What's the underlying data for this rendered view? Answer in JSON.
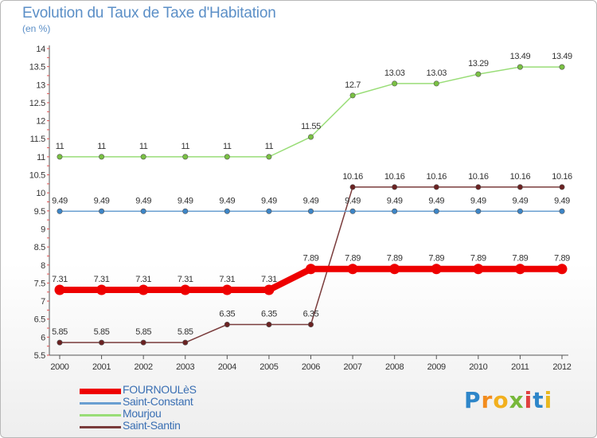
{
  "title": "Evolution du Taux de Taxe d'Habitation",
  "subtitle": "(en %)",
  "colors": {
    "title": "#5b8fc7",
    "FOURNOULèS": "#ee0000",
    "Saint-Constant": "#6a9fd1",
    "Mourjou": "#99dd77",
    "Saint-Santin": "#7a3c3c"
  },
  "legend": [
    {
      "name": "FOURNOULèS",
      "color": "#ee0000"
    },
    {
      "name": "Saint-Constant",
      "color": "#6a9fd1"
    },
    {
      "name": "Mourjou",
      "color": "#99dd77"
    },
    {
      "name": "Saint-Santin",
      "color": "#7a3c3c"
    }
  ],
  "logo": [
    "P",
    "r",
    "o",
    "x",
    "i",
    "t",
    "i"
  ],
  "chart_data": {
    "type": "line",
    "title": "Evolution du Taux de Taxe d'Habitation",
    "ylabel": "(en %)",
    "xlabel": "",
    "x": [
      "2000",
      "2001",
      "2002",
      "2003",
      "2004",
      "2005",
      "2006",
      "2007",
      "2008",
      "2009",
      "2010",
      "2011",
      "2012"
    ],
    "ylim": [
      5.5,
      14
    ],
    "yticks": [
      "5.5",
      "6",
      "6.5",
      "7",
      "7.5",
      "8",
      "8.5",
      "9",
      "9.5",
      "10",
      "10.5",
      "11",
      "11.5",
      "12",
      "12.5",
      "13",
      "13.5",
      "14"
    ],
    "grid": false,
    "legend_position": "bottom-left",
    "series": [
      {
        "name": "Mourjou",
        "color": "#99dd77",
        "marker": "#7ac143",
        "values": [
          11,
          11,
          11,
          11,
          11,
          11,
          11.55,
          12.7,
          13.03,
          13.03,
          13.29,
          13.49,
          13.49
        ],
        "labels": [
          "11",
          "11",
          "11",
          "11",
          "11",
          "11",
          "11.55",
          "12.7",
          "13.03",
          "13.03",
          "13.29",
          "13.49",
          "13.49"
        ]
      },
      {
        "name": "Saint-Santin",
        "color": "#7a3c3c",
        "marker": "#6b2222",
        "values": [
          5.85,
          5.85,
          5.85,
          5.85,
          6.35,
          6.35,
          6.35,
          10.16,
          10.16,
          10.16,
          10.16,
          10.16,
          10.16
        ],
        "labels": [
          "5.85",
          "5.85",
          "5.85",
          "5.85",
          "6.35",
          "6.35",
          "6.35",
          "10.16",
          "10.16",
          "10.16",
          "10.16",
          "10.16",
          "10.16"
        ]
      },
      {
        "name": "Saint-Constant",
        "color": "#6a9fd1",
        "marker": "#3d85c6",
        "values": [
          9.49,
          9.49,
          9.49,
          9.49,
          9.49,
          9.49,
          9.49,
          9.49,
          9.49,
          9.49,
          9.49,
          9.49,
          9.49
        ],
        "labels": [
          "9.49",
          "9.49",
          "9.49",
          "9.49",
          "9.49",
          "9.49",
          "9.49",
          "9.49",
          "9.49",
          "9.49",
          "9.49",
          "9.49",
          "9.49"
        ]
      },
      {
        "name": "FOURNOULèS",
        "color": "#ee0000",
        "marker": "#ee0000",
        "values": [
          7.31,
          7.31,
          7.31,
          7.31,
          7.31,
          7.31,
          7.89,
          7.89,
          7.89,
          7.89,
          7.89,
          7.89,
          7.89
        ],
        "labels": [
          "7.31",
          "7.31",
          "7.31",
          "7.31",
          "7.31",
          "7.31",
          "7.89",
          "7.89",
          "7.89",
          "7.89",
          "7.89",
          "7.89",
          "7.89"
        ]
      }
    ]
  }
}
